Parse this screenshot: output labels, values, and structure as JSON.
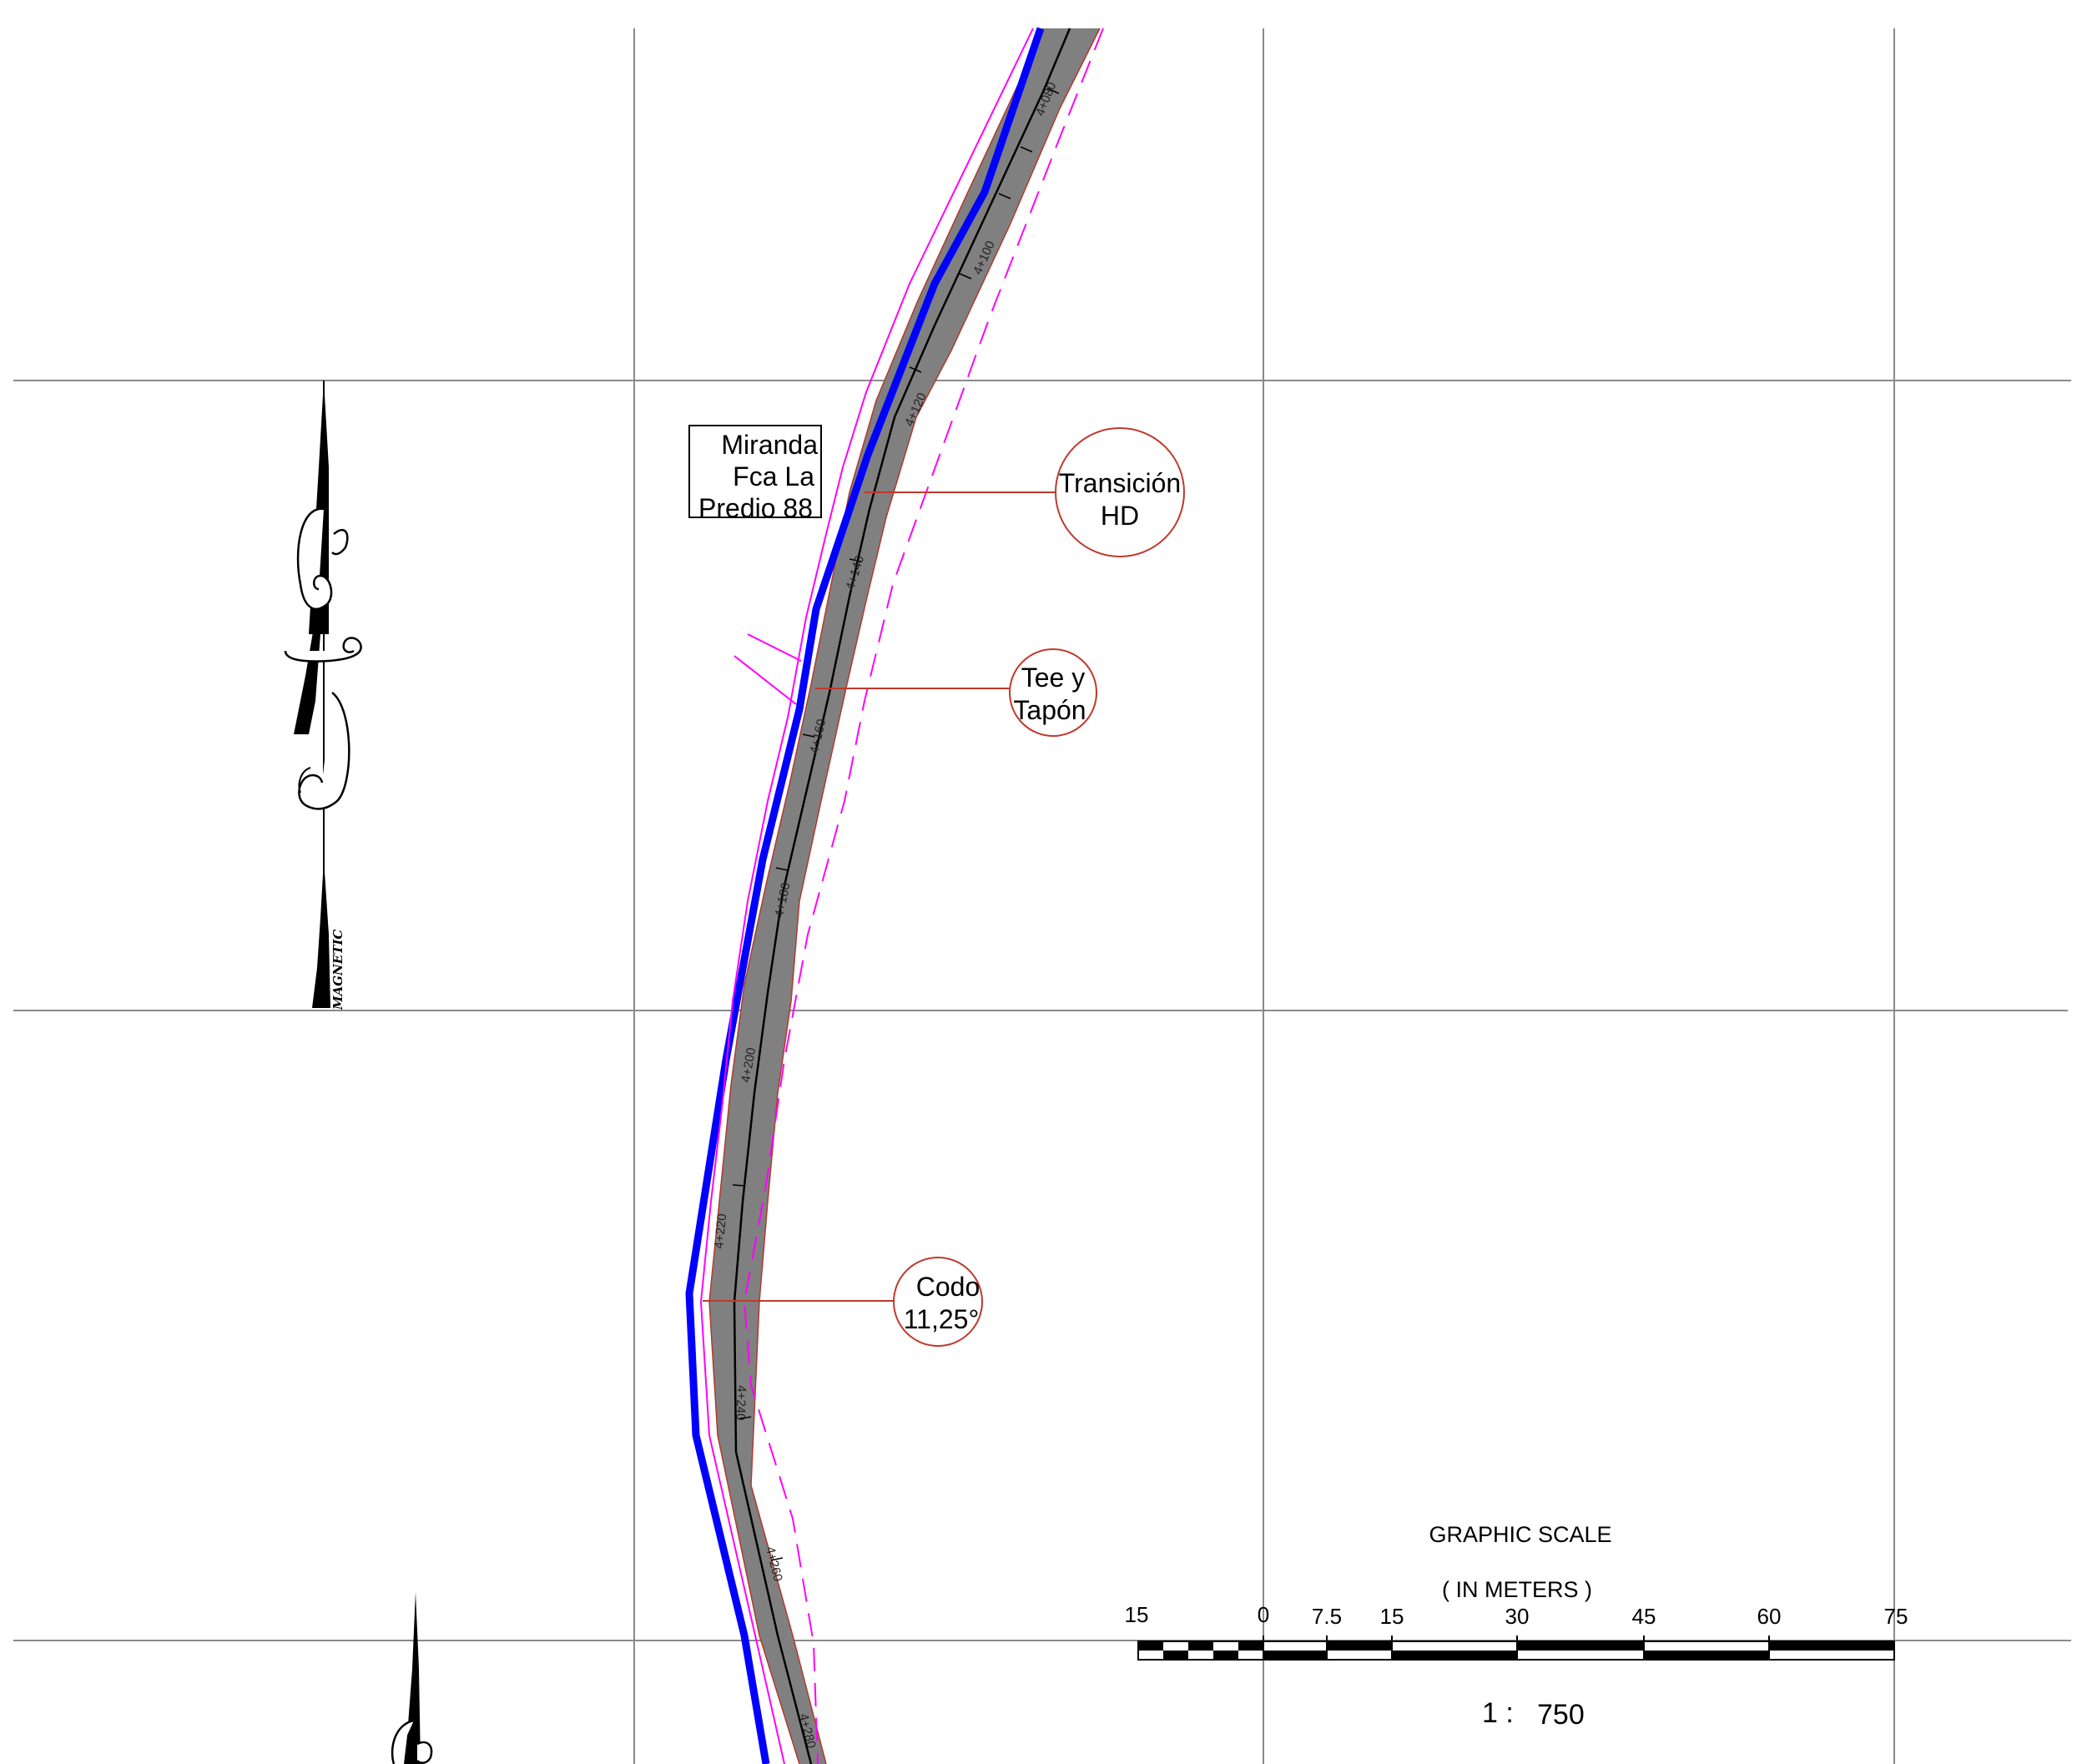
{
  "sheet": {
    "station_labels": [
      "4+080",
      "4+100",
      "4+120",
      "4+140",
      "4+160",
      "4+180",
      "4+200",
      "4+220",
      "4+240",
      "4+260",
      "4+280"
    ],
    "parcel_label": {
      "lines": [
        "Miranda",
        "Fca La",
        "Predio 88"
      ]
    },
    "callouts": [
      {
        "id": "transicion",
        "lines": [
          "Transición",
          "HD"
        ]
      },
      {
        "id": "tee",
        "lines": [
          "Tee y",
          "Tapón"
        ]
      },
      {
        "id": "codo",
        "lines": [
          "Codo",
          "11,25°"
        ]
      }
    ],
    "north_arrow": {
      "label": "MAGNETIC"
    },
    "graphic_scale": {
      "title": "GRAPHIC SCALE",
      "units": "( IN METERS )",
      "tick_labels": [
        "15",
        "0",
        "7.5",
        "15",
        "30",
        "45",
        "60",
        "75"
      ],
      "ratio_prefix": "1 :",
      "ratio_value": "750"
    },
    "colors": {
      "grid": "#8a8a8a",
      "pipe_fill": "#808080",
      "pipe_center": "#000000",
      "boundary": "#0000ff",
      "offset_line": "#ff00ff",
      "callout": "#c0392b"
    }
  }
}
